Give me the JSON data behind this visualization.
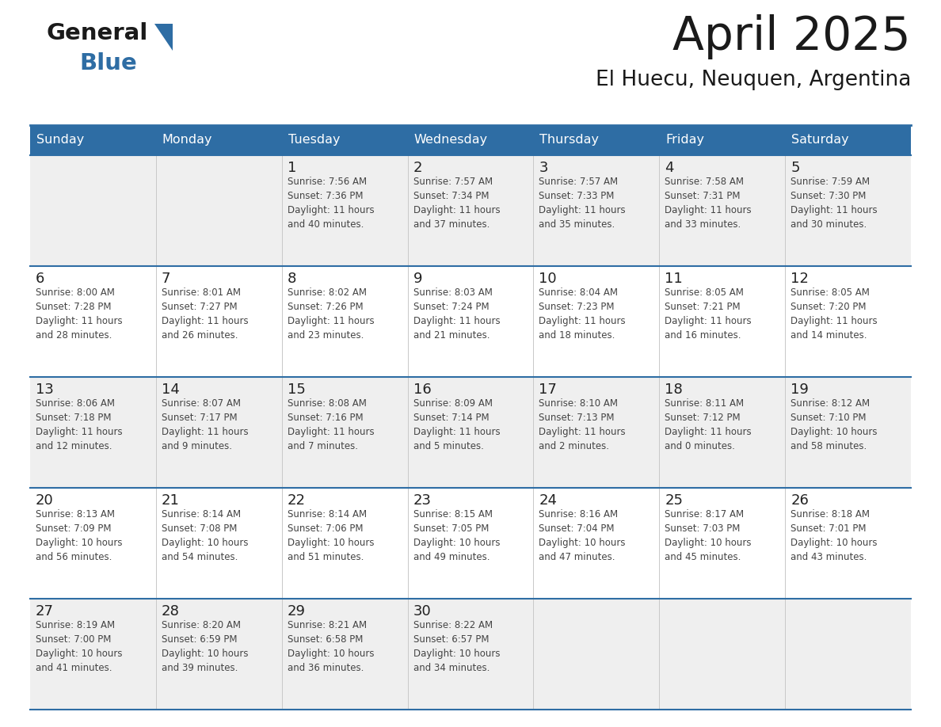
{
  "title": "April 2025",
  "subtitle": "El Huecu, Neuquen, Argentina",
  "header_color": "#2E6DA4",
  "header_text_color": "#FFFFFF",
  "odd_row_color": "#EFEFEF",
  "even_row_color": "#FFFFFF",
  "border_color": "#2E6DA4",
  "day_text_color": "#222222",
  "info_text_color": "#444444",
  "days_of_week": [
    "Sunday",
    "Monday",
    "Tuesday",
    "Wednesday",
    "Thursday",
    "Friday",
    "Saturday"
  ],
  "logo_general_color": "#1a1a1a",
  "logo_blue_color": "#2E6DA4",
  "logo_triangle_color": "#2E6DA4",
  "weeks": [
    [
      {
        "day": "",
        "info": ""
      },
      {
        "day": "",
        "info": ""
      },
      {
        "day": "1",
        "info": "Sunrise: 7:56 AM\nSunset: 7:36 PM\nDaylight: 11 hours\nand 40 minutes."
      },
      {
        "day": "2",
        "info": "Sunrise: 7:57 AM\nSunset: 7:34 PM\nDaylight: 11 hours\nand 37 minutes."
      },
      {
        "day": "3",
        "info": "Sunrise: 7:57 AM\nSunset: 7:33 PM\nDaylight: 11 hours\nand 35 minutes."
      },
      {
        "day": "4",
        "info": "Sunrise: 7:58 AM\nSunset: 7:31 PM\nDaylight: 11 hours\nand 33 minutes."
      },
      {
        "day": "5",
        "info": "Sunrise: 7:59 AM\nSunset: 7:30 PM\nDaylight: 11 hours\nand 30 minutes."
      }
    ],
    [
      {
        "day": "6",
        "info": "Sunrise: 8:00 AM\nSunset: 7:28 PM\nDaylight: 11 hours\nand 28 minutes."
      },
      {
        "day": "7",
        "info": "Sunrise: 8:01 AM\nSunset: 7:27 PM\nDaylight: 11 hours\nand 26 minutes."
      },
      {
        "day": "8",
        "info": "Sunrise: 8:02 AM\nSunset: 7:26 PM\nDaylight: 11 hours\nand 23 minutes."
      },
      {
        "day": "9",
        "info": "Sunrise: 8:03 AM\nSunset: 7:24 PM\nDaylight: 11 hours\nand 21 minutes."
      },
      {
        "day": "10",
        "info": "Sunrise: 8:04 AM\nSunset: 7:23 PM\nDaylight: 11 hours\nand 18 minutes."
      },
      {
        "day": "11",
        "info": "Sunrise: 8:05 AM\nSunset: 7:21 PM\nDaylight: 11 hours\nand 16 minutes."
      },
      {
        "day": "12",
        "info": "Sunrise: 8:05 AM\nSunset: 7:20 PM\nDaylight: 11 hours\nand 14 minutes."
      }
    ],
    [
      {
        "day": "13",
        "info": "Sunrise: 8:06 AM\nSunset: 7:18 PM\nDaylight: 11 hours\nand 12 minutes."
      },
      {
        "day": "14",
        "info": "Sunrise: 8:07 AM\nSunset: 7:17 PM\nDaylight: 11 hours\nand 9 minutes."
      },
      {
        "day": "15",
        "info": "Sunrise: 8:08 AM\nSunset: 7:16 PM\nDaylight: 11 hours\nand 7 minutes."
      },
      {
        "day": "16",
        "info": "Sunrise: 8:09 AM\nSunset: 7:14 PM\nDaylight: 11 hours\nand 5 minutes."
      },
      {
        "day": "17",
        "info": "Sunrise: 8:10 AM\nSunset: 7:13 PM\nDaylight: 11 hours\nand 2 minutes."
      },
      {
        "day": "18",
        "info": "Sunrise: 8:11 AM\nSunset: 7:12 PM\nDaylight: 11 hours\nand 0 minutes."
      },
      {
        "day": "19",
        "info": "Sunrise: 8:12 AM\nSunset: 7:10 PM\nDaylight: 10 hours\nand 58 minutes."
      }
    ],
    [
      {
        "day": "20",
        "info": "Sunrise: 8:13 AM\nSunset: 7:09 PM\nDaylight: 10 hours\nand 56 minutes."
      },
      {
        "day": "21",
        "info": "Sunrise: 8:14 AM\nSunset: 7:08 PM\nDaylight: 10 hours\nand 54 minutes."
      },
      {
        "day": "22",
        "info": "Sunrise: 8:14 AM\nSunset: 7:06 PM\nDaylight: 10 hours\nand 51 minutes."
      },
      {
        "day": "23",
        "info": "Sunrise: 8:15 AM\nSunset: 7:05 PM\nDaylight: 10 hours\nand 49 minutes."
      },
      {
        "day": "24",
        "info": "Sunrise: 8:16 AM\nSunset: 7:04 PM\nDaylight: 10 hours\nand 47 minutes."
      },
      {
        "day": "25",
        "info": "Sunrise: 8:17 AM\nSunset: 7:03 PM\nDaylight: 10 hours\nand 45 minutes."
      },
      {
        "day": "26",
        "info": "Sunrise: 8:18 AM\nSunset: 7:01 PM\nDaylight: 10 hours\nand 43 minutes."
      }
    ],
    [
      {
        "day": "27",
        "info": "Sunrise: 8:19 AM\nSunset: 7:00 PM\nDaylight: 10 hours\nand 41 minutes."
      },
      {
        "day": "28",
        "info": "Sunrise: 8:20 AM\nSunset: 6:59 PM\nDaylight: 10 hours\nand 39 minutes."
      },
      {
        "day": "29",
        "info": "Sunrise: 8:21 AM\nSunset: 6:58 PM\nDaylight: 10 hours\nand 36 minutes."
      },
      {
        "day": "30",
        "info": "Sunrise: 8:22 AM\nSunset: 6:57 PM\nDaylight: 10 hours\nand 34 minutes."
      },
      {
        "day": "",
        "info": ""
      },
      {
        "day": "",
        "info": ""
      },
      {
        "day": "",
        "info": ""
      }
    ]
  ]
}
